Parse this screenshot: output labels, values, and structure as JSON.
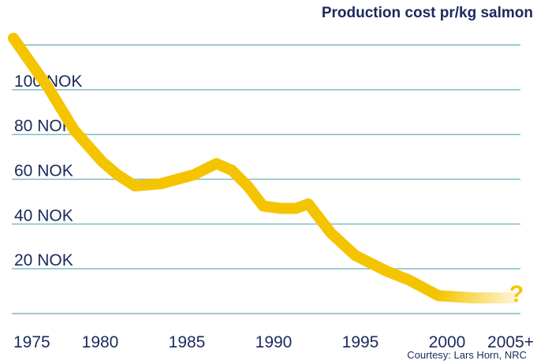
{
  "chart_data": {
    "type": "line",
    "title": "Production cost pr/kg salmon",
    "annotation": "?",
    "source": "Courtesy: Lars Horn, NRC",
    "x": [
      1975,
      1977,
      1978.5,
      1980.1,
      1981,
      1982,
      1983.5,
      1985.4,
      1986.7,
      1987.6,
      1988.5,
      1989.4,
      1990.4,
      1991.3,
      1992,
      1993.3,
      1994.7,
      1996.5,
      1997.8,
      1999.5,
      2001.5,
      2003.8
    ],
    "series": [
      {
        "color": "#f5c400",
        "values": [
          123,
          101,
          82,
          68,
          62,
          57,
          58,
          62,
          67,
          64,
          57,
          48,
          47,
          47,
          49,
          36,
          26,
          19,
          15,
          8,
          7,
          7
        ]
      }
    ],
    "xlim": [
      1975,
      2005
    ],
    "xticks": [
      1975,
      1980,
      1985,
      1990,
      1995,
      2000,
      {
        "value": 2005,
        "label": "2005+"
      }
    ],
    "ylim": [
      0,
      120
    ],
    "yticks": [
      {
        "value": 20,
        "label": "20 NOK"
      },
      {
        "value": 40,
        "label": "40 NOK"
      },
      {
        "value": 60,
        "label": "60 NOK"
      },
      {
        "value": 80,
        "label": "80 NOK"
      },
      {
        "value": 100,
        "label": "100 NOK"
      }
    ],
    "grid": true
  }
}
